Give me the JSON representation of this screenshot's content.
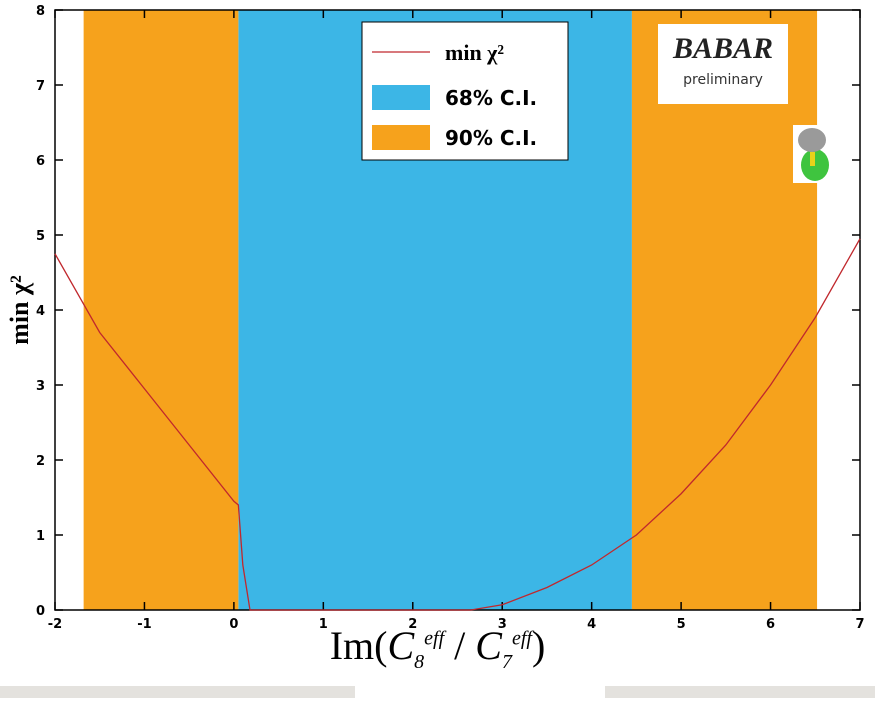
{
  "chart_data": {
    "type": "line",
    "xlabel": [
      "Im(",
      "C",
      "8",
      "eff",
      " / ",
      "C",
      "7",
      "eff",
      ")"
    ],
    "ylabel": "min χ²",
    "xlim": [
      -2,
      7
    ],
    "ylim": [
      0,
      8
    ],
    "xticks": [
      -2,
      -1,
      0,
      1,
      2,
      3,
      4,
      5,
      6,
      7
    ],
    "yticks": [
      0,
      1,
      2,
      3,
      4,
      5,
      6,
      7,
      8
    ],
    "bands": [
      {
        "name": "68% C.I.",
        "color": "#3cb6e6",
        "ranges": [
          [
            0.05,
            4.45
          ]
        ]
      },
      {
        "name": "90% C.I.",
        "color": "#f6a21c",
        "ranges": [
          [
            -1.68,
            0.05
          ],
          [
            4.45,
            6.52
          ]
        ]
      }
    ],
    "series": [
      {
        "name": "min χ²",
        "color": "#c0282d",
        "x": [
          -2,
          -1.5,
          -1,
          -0.5,
          0,
          0.05,
          0.1,
          0.18,
          2.65,
          3,
          3.5,
          4,
          4.5,
          5,
          5.5,
          6,
          6.5,
          7
        ],
        "values": [
          4.75,
          3.7,
          2.95,
          2.2,
          1.45,
          1.4,
          0.6,
          0,
          0,
          0.07,
          0.3,
          0.6,
          1.0,
          1.55,
          2.2,
          3.0,
          3.9,
          4.95
        ]
      }
    ],
    "annotations": [
      "BABAR",
      "preliminary"
    ]
  }
}
